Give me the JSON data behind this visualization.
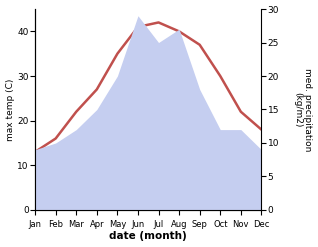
{
  "months": [
    "Jan",
    "Feb",
    "Mar",
    "Apr",
    "May",
    "Jun",
    "Jul",
    "Aug",
    "Sep",
    "Oct",
    "Nov",
    "Dec"
  ],
  "temperature": [
    13,
    16,
    22,
    27,
    35,
    41,
    42,
    40,
    37,
    30,
    22,
    18
  ],
  "precipitation": [
    9,
    10,
    12,
    15,
    20,
    29,
    25,
    27,
    18,
    12,
    12,
    9
  ],
  "temp_color": "#c0504d",
  "precip_fill_color": "#c5cef0",
  "temp_ylim": [
    0,
    45
  ],
  "precip_ylim": [
    0,
    30
  ],
  "temp_yticks": [
    0,
    10,
    20,
    30,
    40
  ],
  "precip_yticks": [
    0,
    5,
    10,
    15,
    20,
    25,
    30
  ],
  "ylabel_left": "max temp (C)",
  "ylabel_right": "med. precipitation\n(kg/m2)",
  "xlabel": "date (month)",
  "figsize": [
    3.18,
    2.47
  ],
  "dpi": 100
}
